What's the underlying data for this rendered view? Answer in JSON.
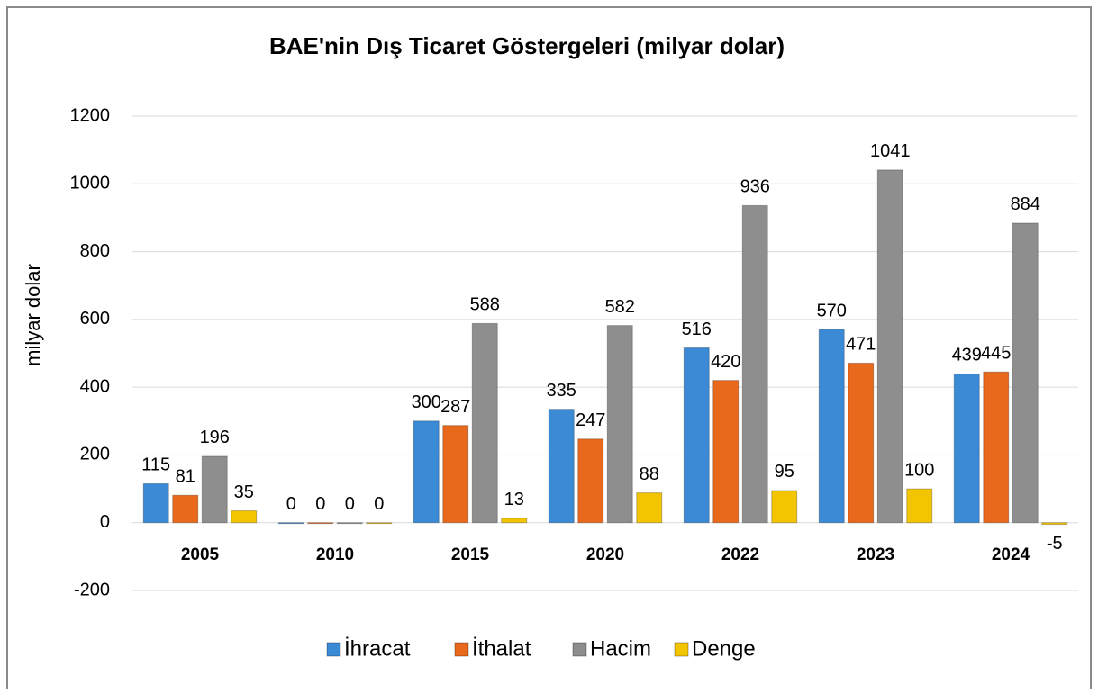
{
  "chart_data": {
    "type": "bar",
    "title": "BAE'nin Dış Ticaret Göstergeleri (milyar dolar)",
    "y_label": "milyar dolar",
    "categories": [
      "2005",
      "2010",
      "2015",
      "2020",
      "2022",
      "2023",
      "2024"
    ],
    "series": [
      {
        "name": "İhracat",
        "color": "#3a8ad6",
        "values": [
          115,
          0,
          300,
          335,
          516,
          570,
          439
        ]
      },
      {
        "name": "İthalat",
        "color": "#e8691c",
        "values": [
          81,
          0,
          287,
          247,
          420,
          471,
          445
        ]
      },
      {
        "name": "Hacim",
        "color": "#8e8e8e",
        "values": [
          196,
          0,
          588,
          582,
          936,
          1041,
          884
        ]
      },
      {
        "name": "Denge",
        "color": "#f2c500",
        "values": [
          35,
          0,
          13,
          88,
          95,
          100,
          -5
        ]
      }
    ],
    "ylim": [
      -200,
      1200
    ],
    "yticks": [
      -200,
      0,
      200,
      400,
      600,
      800,
      1000,
      1200
    ],
    "grid": true,
    "legend": "bottom"
  }
}
